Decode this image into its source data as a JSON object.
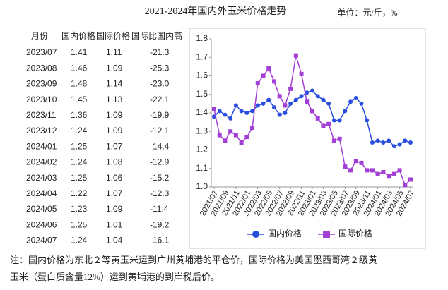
{
  "header": {
    "title": "2021-2024年国内外玉米价格走势",
    "unit": "单位：元/斤，%"
  },
  "table": {
    "columns": [
      "月份",
      "国内价格",
      "国际价格",
      "国际比国内高"
    ],
    "rows": [
      [
        "2023/07",
        "1.41",
        "1.11",
        "-21.3"
      ],
      [
        "2023/08",
        "1.46",
        "1.09",
        "-25.3"
      ],
      [
        "2023/09",
        "1.48",
        "1.14",
        "-23.0"
      ],
      [
        "2023/10",
        "1.45",
        "1.13",
        "-22.1"
      ],
      [
        "2023/11",
        "1.36",
        "1.09",
        "-19.9"
      ],
      [
        "2023/12",
        "1.24",
        "1.09",
        "-12.1"
      ],
      [
        "2024/01",
        "1.25",
        "1.07",
        "-14.4"
      ],
      [
        "2024/02",
        "1.24",
        "1.08",
        "-12.9"
      ],
      [
        "2024/03",
        "1.25",
        "1.06",
        "-15.2"
      ],
      [
        "2024/04",
        "1.22",
        "1.07",
        "-12.3"
      ],
      [
        "2024/05",
        "1.23",
        "1.09",
        "-11.4"
      ],
      [
        "2024/06",
        "1.25",
        "1.01",
        "-19.2"
      ],
      [
        "2024/07",
        "1.24",
        "1.04",
        "-16.1"
      ]
    ]
  },
  "chart_data": {
    "type": "line",
    "categories": [
      "2021/07",
      null,
      "2021/09",
      null,
      "2021/11",
      null,
      "2022/01",
      null,
      "2022/03",
      null,
      "2022/05",
      null,
      "2022/07",
      null,
      "2022/09",
      null,
      "2022/11",
      null,
      "2023/01",
      null,
      "2023/03",
      null,
      "2023/05",
      null,
      "2023/07",
      null,
      "2023/09",
      null,
      "2023/11",
      null,
      "2024/01",
      null,
      "2024/03",
      null,
      "2024/05",
      null,
      "2024/07"
    ],
    "series": [
      {
        "name": "国内价格",
        "color": "#2a4fe0",
        "values": [
          1.38,
          1.41,
          1.39,
          1.37,
          1.44,
          1.41,
          1.4,
          1.41,
          1.44,
          1.45,
          1.47,
          1.43,
          1.39,
          1.4,
          1.45,
          1.47,
          1.49,
          1.51,
          1.52,
          1.49,
          1.47,
          1.45,
          1.36,
          1.36,
          1.41,
          1.46,
          1.48,
          1.45,
          1.36,
          1.24,
          1.25,
          1.24,
          1.25,
          1.22,
          1.23,
          1.25,
          1.24
        ]
      },
      {
        "name": "国际价格",
        "color": "#a23fd6",
        "values": [
          1.42,
          1.28,
          1.25,
          1.3,
          1.28,
          1.24,
          1.27,
          1.32,
          1.56,
          1.6,
          1.64,
          1.57,
          1.49,
          1.44,
          1.53,
          1.71,
          1.61,
          1.46,
          1.41,
          1.37,
          1.33,
          1.34,
          1.25,
          1.26,
          1.11,
          1.09,
          1.14,
          1.13,
          1.09,
          1.09,
          1.07,
          1.08,
          1.06,
          1.07,
          1.09,
          1.01,
          1.04
        ]
      }
    ],
    "ylim": [
      1.0,
      1.8
    ],
    "yticks": [
      {
        "value": 1,
        "label": "1.0"
      },
      1.1,
      1.2,
      1.3,
      1.4,
      1.5,
      1.6,
      1.7,
      1.8
    ],
    "legend": "bottom"
  },
  "note": [
    "注：国内价格为东北２等黄玉米运到广州黄埔港的平仓价，国际价格为美国墨西哥湾２级黄",
    "玉米（蛋白质含量12%）运到黄埔港的到岸税后价。"
  ]
}
